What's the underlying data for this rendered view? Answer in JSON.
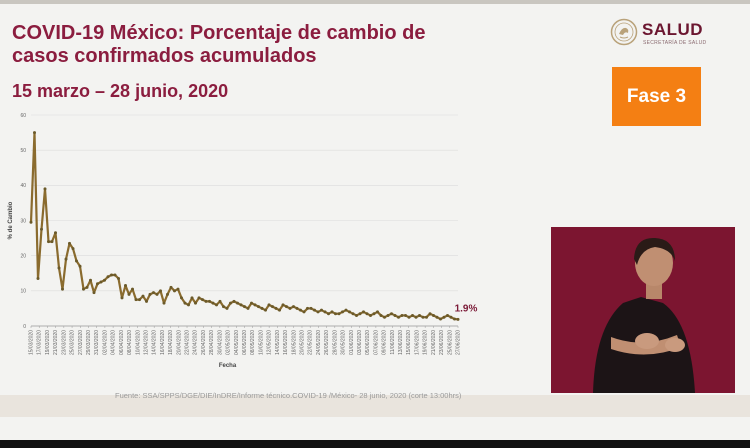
{
  "title": "COVID-19 México: Porcentaje de cambio de casos confirmados acumulados",
  "subtitle": "15 marzo – 28 junio, 2020",
  "logo": {
    "text": "SALUD",
    "subtext": "SECRETARÍA DE SALUD",
    "icon": "eagle-emblem-icon"
  },
  "phase_badge": {
    "label": "Fase 3",
    "color": "#f47f13"
  },
  "source": "Fuente: SSA/SPPS/DGE/DIE/InDRE/Informe técnico.COVID-19 /México- 28 junio, 2020 (corte 13:00hrs)",
  "colors": {
    "title": "#8b1d3f",
    "line": "#8a6b2e",
    "marker": "#6b5a2a"
  },
  "chart_data": {
    "type": "line",
    "title": "",
    "xlabel": "Fecha",
    "ylabel": "% de Cambio",
    "ylim": [
      0,
      60
    ],
    "yticks": [
      0,
      10,
      20,
      30,
      40,
      50,
      60
    ],
    "grid": true,
    "final_label": "1.9%",
    "x_tick_labels": [
      "15/03/2020",
      "17/03/2020",
      "19/03/2020",
      "21/03/2020",
      "23/03/2020",
      "25/03/2020",
      "27/03/2020",
      "29/03/2020",
      "31/03/2020",
      "02/04/2020",
      "04/04/2020",
      "06/04/2020",
      "08/04/2020",
      "10/04/2020",
      "12/04/2020",
      "14/04/2020",
      "16/04/2020",
      "18/04/2020",
      "20/04/2020",
      "22/04/2020",
      "24/04/2020",
      "26/04/2020",
      "28/04/2020",
      "30/04/2020",
      "02/05/2020",
      "04/05/2020",
      "06/05/2020",
      "08/05/2020",
      "10/05/2020",
      "12/05/2020",
      "14/05/2020",
      "16/05/2020",
      "18/05/2020",
      "20/05/2020",
      "22/05/2020",
      "24/05/2020",
      "26/05/2020",
      "28/05/2020",
      "30/05/2020",
      "01/06/2020",
      "03/06/2020",
      "05/06/2020",
      "07/06/2020",
      "09/06/2020",
      "11/06/2020",
      "13/06/2020",
      "15/06/2020",
      "17/06/2020",
      "19/06/2020",
      "21/06/2020",
      "23/06/2020",
      "25/06/2020",
      "27/06/2020"
    ],
    "series": [
      {
        "name": "",
        "values": [
          29.5,
          55.0,
          13.5,
          27.5,
          39.0,
          24.0,
          24.0,
          26.5,
          16.5,
          10.5,
          19.0,
          23.5,
          22.0,
          18.5,
          17.0,
          10.5,
          11.0,
          13.0,
          9.5,
          12.0,
          12.5,
          13.0,
          14.0,
          14.5,
          14.5,
          13.5,
          8.0,
          11.5,
          9.0,
          10.5,
          7.5,
          7.5,
          8.5,
          7.0,
          9.0,
          9.5,
          9.0,
          10.0,
          6.5,
          9.0,
          11.0,
          10.0,
          10.5,
          8.0,
          6.5,
          6.0,
          8.0,
          6.5,
          8.0,
          7.5,
          7.0,
          7.0,
          6.5,
          6.0,
          7.0,
          5.5,
          5.0,
          6.5,
          7.0,
          6.5,
          6.0,
          5.5,
          5.0,
          6.5,
          6.0,
          5.5,
          5.0,
          4.5,
          6.0,
          5.5,
          5.0,
          4.5,
          6.0,
          5.5,
          5.0,
          5.5,
          5.0,
          4.5,
          4.0,
          5.0,
          5.0,
          4.5,
          4.0,
          4.5,
          4.0,
          3.5,
          4.0,
          3.5,
          3.5,
          4.0,
          4.5,
          4.0,
          3.5,
          3.0,
          3.5,
          4.0,
          3.5,
          3.0,
          3.5,
          4.0,
          3.0,
          2.5,
          3.0,
          3.5,
          3.0,
          2.5,
          3.0,
          3.0,
          2.5,
          3.0,
          2.5,
          3.0,
          2.5,
          2.5,
          3.5,
          3.0,
          2.5,
          2.0,
          2.5,
          3.0,
          2.5,
          2.0,
          1.9
        ]
      }
    ]
  }
}
